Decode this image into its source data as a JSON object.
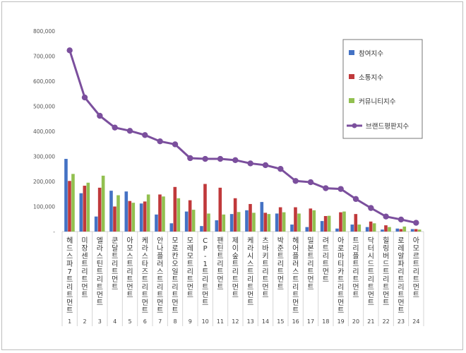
{
  "chart_data": {
    "type": "bar",
    "title": "",
    "xlabel": "",
    "ylabel": "",
    "ylim": [
      0,
      800000
    ],
    "yticks": [
      "-",
      "100,000",
      "200,000",
      "300,000",
      "400,000",
      "500,000",
      "600,000",
      "700,000",
      "800,000"
    ],
    "grid": false,
    "legend_position": "top-right",
    "index_labels": [
      "1",
      "2",
      "3",
      "4",
      "5",
      "6",
      "7",
      "8",
      "9",
      "10",
      "11",
      "12",
      "13",
      "14",
      "15",
      "16",
      "17",
      "18",
      "19",
      "20",
      "21",
      "22",
      "23",
      "24"
    ],
    "categories": [
      "헤드스파7트리트먼트",
      "미장센트리트먼트",
      "엘라스틴트리트먼트",
      "쿤달트리트먼트",
      "아모스트리트먼트",
      "케라스타즈트리트먼트",
      "안나플러스트리트먼트",
      "모로칸오일트리트먼트",
      "모레모트리트먼트",
      "CP-1트리트먼트",
      "팬틴트리트먼트",
      "제이숲트리트먼트",
      "케라시스트리트먼트",
      "츠바키트리트먼트",
      "박준트리트먼트",
      "헤어플러스트리트먼트",
      "밀본트리트먼트",
      "려트리트먼트",
      "아로마티카트리트먼트",
      "트리플트리트먼트",
      "닥터시드트리트먼트",
      "힐링버드트리트먼트",
      "로레알파리트리트먼트",
      "아모르트리트먼트"
    ],
    "series": [
      {
        "name": "참여지수",
        "type": "bar",
        "color": "#4472c4",
        "values": [
          290000,
          153000,
          60000,
          163000,
          160000,
          112000,
          68000,
          33000,
          80000,
          22000,
          45000,
          70000,
          85000,
          118000,
          72000,
          28000,
          18000,
          42000,
          12000,
          28000,
          18000,
          8000,
          12000,
          10000
        ]
      },
      {
        "name": "소통지수",
        "type": "bar",
        "color": "#c0393b",
        "values": [
          202000,
          183000,
          175000,
          100000,
          122000,
          120000,
          148000,
          178000,
          125000,
          190000,
          175000,
          133000,
          110000,
          75000,
          97000,
          97000,
          92000,
          62000,
          77000,
          70000,
          40000,
          25000,
          10000,
          10000
        ]
      },
      {
        "name": "커뮤니티지수",
        "type": "bar",
        "color": "#92c050",
        "values": [
          230000,
          195000,
          223000,
          145000,
          115000,
          148000,
          140000,
          133000,
          87000,
          72000,
          68000,
          78000,
          75000,
          70000,
          77000,
          72000,
          85000,
          63000,
          80000,
          28000,
          33000,
          18000,
          20000,
          8000
        ]
      },
      {
        "name": "브랜드평판지수",
        "type": "line",
        "color": "#7b4f9d",
        "values": [
          723000,
          535000,
          462000,
          415000,
          402000,
          385000,
          360000,
          348000,
          293000,
          290000,
          290000,
          285000,
          272000,
          265000,
          250000,
          202000,
          197000,
          173000,
          170000,
          130000,
          94000,
          60000,
          48000,
          35000
        ]
      }
    ]
  }
}
